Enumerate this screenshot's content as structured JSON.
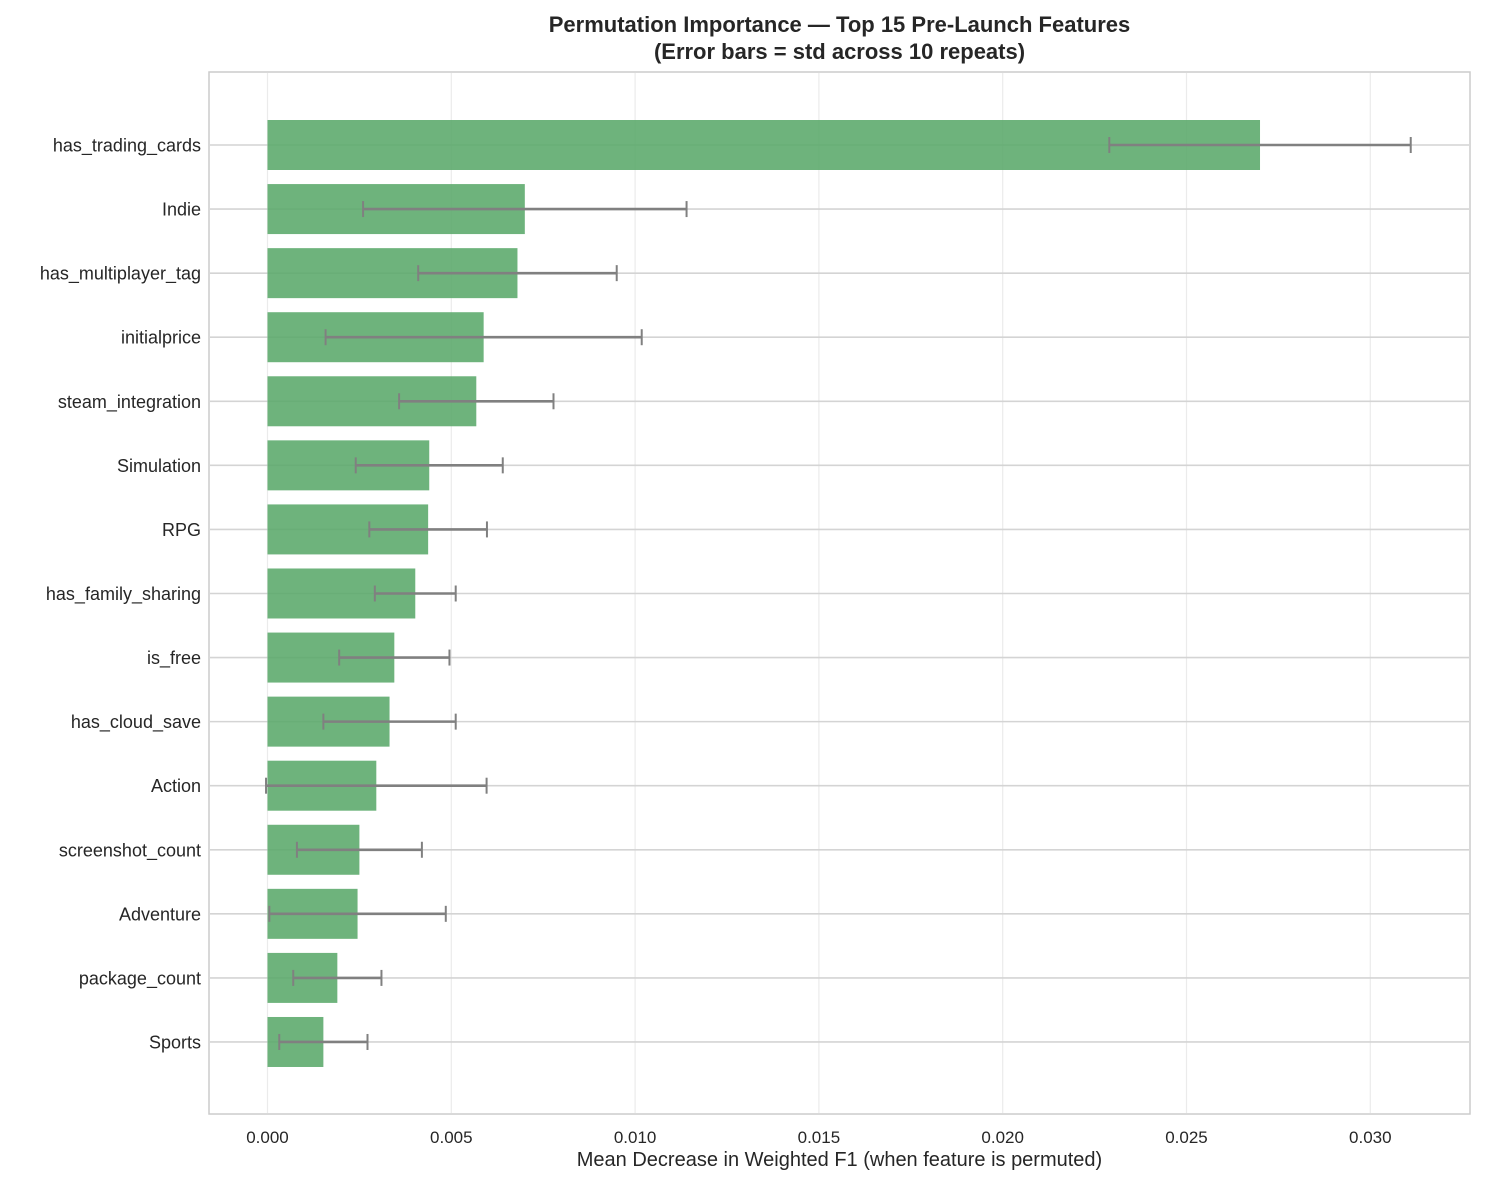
{
  "chart_data": {
    "type": "bar",
    "orientation": "horizontal",
    "title": "Permutation Importance — Top 15 Pre-Launch Features",
    "subtitle": "(Error bars = std across 10 repeats)",
    "xlabel": "Mean Decrease in Weighted F1 (when feature is permuted)",
    "ylabel": "",
    "xlim": [
      -0.0016,
      0.0326
    ],
    "xticks": [
      0.0,
      0.005,
      0.01,
      0.015,
      0.02,
      0.025,
      0.03
    ],
    "xtick_labels": [
      "0.000",
      "0.005",
      "0.010",
      "0.015",
      "0.020",
      "0.025",
      "0.030"
    ],
    "grid": true,
    "bar_color": "#5aa86a",
    "errorbar_color": "#808080",
    "categories": [
      "has_trading_cards",
      "Indie",
      "has_multiplayer_tag",
      "initialprice",
      "steam_integration",
      "Simulation",
      "RPG",
      "has_family_sharing",
      "is_free",
      "has_cloud_save",
      "Action",
      "screenshot_count",
      "Adventure",
      "package_count",
      "Sports"
    ],
    "values": [
      0.027,
      0.007,
      0.0068,
      0.00588,
      0.00568,
      0.0044,
      0.00437,
      0.00402,
      0.00345,
      0.00332,
      0.00296,
      0.0025,
      0.00245,
      0.0019,
      0.00152
    ],
    "errors": [
      0.0041,
      0.0044,
      0.0027,
      0.0043,
      0.0021,
      0.002,
      0.0016,
      0.0011,
      0.0015,
      0.0018,
      0.003,
      0.0017,
      0.0024,
      0.0012,
      0.0012
    ]
  }
}
